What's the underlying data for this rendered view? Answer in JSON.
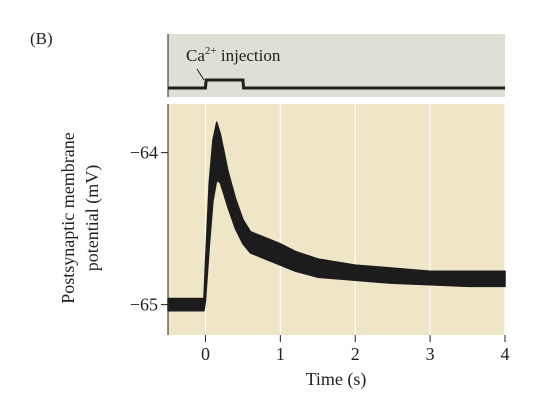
{
  "panel_label": "(B)",
  "colors": {
    "stim_bg": "#dde0d5",
    "plot_bg": "#efe6c8",
    "trace": "#1c1c1c",
    "axis": "#231f20",
    "grid": "#ffffff"
  },
  "chart_data": [
    {
      "type": "line",
      "title": "",
      "annotation": {
        "superscript_base": "Ca",
        "superscript": "2+",
        "text": " injection"
      },
      "x": [
        -0.5,
        0.0,
        0.01,
        0.5,
        0.51,
        4.0
      ],
      "values": [
        0,
        0,
        1,
        1,
        0,
        0
      ],
      "xlim": [
        -0.5,
        4.0
      ],
      "grid": false,
      "legend": null
    },
    {
      "type": "line",
      "title": "",
      "xlabel": "Time (s)",
      "ylabel_lines": [
        "Postsynaptic membrane",
        "potential (mV)"
      ],
      "xlim": [
        -0.5,
        4.0
      ],
      "ylim": [
        -65.2,
        -63.68
      ],
      "x_ticks": [
        0,
        1,
        2,
        3,
        4
      ],
      "x_tick_labels": [
        "0",
        "1",
        "2",
        "3",
        "4"
      ],
      "y_ticks": [
        -64,
        -65
      ],
      "y_tick_labels": [
        "−64",
        "−65"
      ],
      "grid": true,
      "legend": null,
      "series": [
        {
          "x": [
            -0.5,
            -0.02,
            0.0,
            0.05,
            0.1,
            0.15,
            0.2,
            0.25,
            0.3,
            0.4,
            0.5,
            0.6,
            0.8,
            1.0,
            1.2,
            1.5,
            2.0,
            2.5,
            3.0,
            3.5,
            4.0
          ],
          "upper": [
            -64.96,
            -64.96,
            -64.74,
            -64.2,
            -63.92,
            -63.8,
            -63.88,
            -64.0,
            -64.12,
            -64.3,
            -64.44,
            -64.52,
            -64.56,
            -64.6,
            -64.65,
            -64.7,
            -64.74,
            -64.76,
            -64.78,
            -64.78,
            -64.78
          ],
          "lower": [
            -65.04,
            -65.04,
            -64.98,
            -64.62,
            -64.32,
            -64.18,
            -64.2,
            -64.28,
            -64.36,
            -64.5,
            -64.6,
            -64.66,
            -64.7,
            -64.74,
            -64.78,
            -64.82,
            -64.84,
            -64.86,
            -64.87,
            -64.88,
            -64.88
          ]
        }
      ]
    }
  ]
}
